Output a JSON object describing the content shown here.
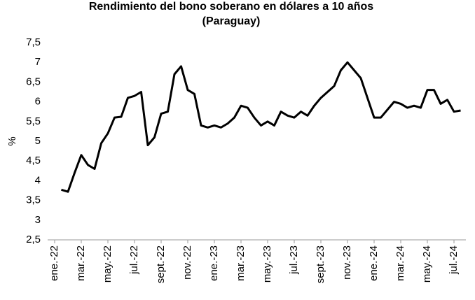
{
  "chart_data": {
    "type": "line",
    "title": [
      "Rendimiento del bono soberano en dólares a 10 años",
      "(Paraguay)"
    ],
    "y_label": "%",
    "categories": [
      "ene.-22",
      null,
      null,
      null,
      "mar.-22",
      null,
      null,
      null,
      "may.-22",
      null,
      null,
      null,
      "jul.-22",
      null,
      null,
      null,
      "sept.-22",
      null,
      null,
      null,
      "nov.-22",
      null,
      null,
      null,
      "ene.-23",
      null,
      null,
      null,
      "mar.-23",
      null,
      null,
      null,
      "may.-23",
      null,
      null,
      null,
      "jul.-23",
      null,
      null,
      null,
      "sept.-23",
      null,
      null,
      null,
      "nov.-23",
      null,
      null,
      null,
      "ene.-24",
      null,
      null,
      null,
      "mar.-24",
      null,
      null,
      null,
      "may.-24",
      null,
      null,
      null,
      "jul.-24",
      null
    ],
    "values": [
      null,
      3.77,
      3.72,
      4.2,
      4.65,
      4.4,
      4.3,
      4.95,
      5.2,
      5.6,
      5.62,
      6.1,
      6.15,
      6.25,
      4.9,
      5.1,
      5.7,
      5.75,
      6.7,
      6.9,
      6.3,
      6.2,
      5.4,
      5.35,
      5.4,
      5.35,
      5.45,
      5.6,
      5.9,
      5.85,
      5.6,
      5.4,
      5.5,
      5.4,
      5.75,
      5.65,
      5.6,
      5.75,
      5.65,
      5.9,
      6.1,
      6.25,
      6.4,
      6.8,
      7.0,
      6.8,
      6.6,
      6.1,
      5.6,
      5.6,
      5.8,
      6.0,
      5.95,
      5.85,
      5.9,
      5.85,
      6.3,
      6.3,
      5.95,
      6.05,
      5.75,
      5.78
    ],
    "color": "#000000",
    "ylim": [
      2.5,
      7.5
    ],
    "yticks": [
      {
        "value": 2.5,
        "label": "2,5"
      },
      3,
      {
        "value": 3.5,
        "label": "3,5"
      },
      4,
      {
        "value": 4.5,
        "label": "4,5"
      },
      5,
      {
        "value": 5.5,
        "label": "5,5"
      },
      6,
      {
        "value": 6.5,
        "label": "6,5"
      },
      7,
      {
        "value": 7.5,
        "label": "7,5"
      }
    ],
    "grid": false
  }
}
